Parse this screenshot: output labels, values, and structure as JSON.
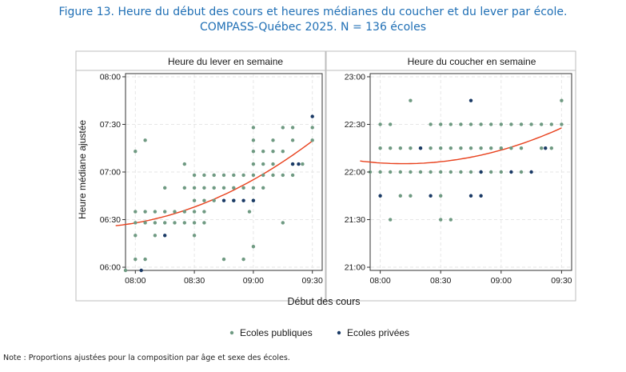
{
  "title_line1": "Figure 13. Heure du début des cours et heures médianes du coucher et du lever par école.",
  "title_line2": "COMPASS-Québec 2025. N = 136 écoles",
  "xlabel": "Début des cours",
  "ylabel": "Heure médiane ajustée",
  "legend": [
    {
      "label": "Ecoles publiques",
      "color": "#6f9a82"
    },
    {
      "label": "Ecoles privées",
      "color": "#1a3a66"
    }
  ],
  "note": "Note : Proportions ajustées pour la composition par âge et sexe des écoles.",
  "colors": {
    "public": "#6f9a82",
    "private": "#1a3a66",
    "fit": "#e8401c",
    "grid": "#e6e6e6"
  },
  "chart_data": [
    {
      "type": "scatter",
      "title": "Heure du lever en semaine",
      "xlim": [
        "07:55",
        "09:35"
      ],
      "ylim": [
        "05:58",
        "08:02"
      ],
      "xticks": [
        "08:00",
        "08:30",
        "09:00",
        "09:30"
      ],
      "yticks": [
        "06:00",
        "06:30",
        "07:00",
        "07:30",
        "08:00"
      ],
      "series": [
        {
          "name": "Ecoles publiques",
          "points": [
            [
              "07:55",
              "05:58"
            ],
            [
              "08:00",
              "06:05"
            ],
            [
              "08:00",
              "06:20"
            ],
            [
              "08:00",
              "06:28"
            ],
            [
              "08:00",
              "06:35"
            ],
            [
              "08:00",
              "07:13"
            ],
            [
              "08:05",
              "06:05"
            ],
            [
              "08:05",
              "06:28"
            ],
            [
              "08:05",
              "06:35"
            ],
            [
              "08:05",
              "07:20"
            ],
            [
              "08:10",
              "06:20"
            ],
            [
              "08:10",
              "06:28"
            ],
            [
              "08:10",
              "06:35"
            ],
            [
              "08:15",
              "06:28"
            ],
            [
              "08:15",
              "06:35"
            ],
            [
              "08:15",
              "06:50"
            ],
            [
              "08:20",
              "06:28"
            ],
            [
              "08:20",
              "06:35"
            ],
            [
              "08:25",
              "06:28"
            ],
            [
              "08:25",
              "06:35"
            ],
            [
              "08:25",
              "06:50"
            ],
            [
              "08:25",
              "07:05"
            ],
            [
              "08:30",
              "06:20"
            ],
            [
              "08:30",
              "06:28"
            ],
            [
              "08:30",
              "06:35"
            ],
            [
              "08:30",
              "06:42"
            ],
            [
              "08:30",
              "06:50"
            ],
            [
              "08:30",
              "06:58"
            ],
            [
              "08:35",
              "06:28"
            ],
            [
              "08:35",
              "06:35"
            ],
            [
              "08:35",
              "06:42"
            ],
            [
              "08:35",
              "06:50"
            ],
            [
              "08:35",
              "06:58"
            ],
            [
              "08:40",
              "06:42"
            ],
            [
              "08:40",
              "06:50"
            ],
            [
              "08:40",
              "06:58"
            ],
            [
              "08:45",
              "06:05"
            ],
            [
              "08:45",
              "06:50"
            ],
            [
              "08:45",
              "06:58"
            ],
            [
              "08:50",
              "06:42"
            ],
            [
              "08:50",
              "06:50"
            ],
            [
              "08:50",
              "06:58"
            ],
            [
              "08:55",
              "06:05"
            ],
            [
              "08:55",
              "06:50"
            ],
            [
              "08:55",
              "06:58"
            ],
            [
              "09:00",
              "06:13"
            ],
            [
              "08:58",
              "06:35"
            ],
            [
              "09:00",
              "06:42"
            ],
            [
              "09:00",
              "06:50"
            ],
            [
              "09:00",
              "06:58"
            ],
            [
              "09:00",
              "07:05"
            ],
            [
              "09:00",
              "07:13"
            ],
            [
              "09:00",
              "07:20"
            ],
            [
              "09:00",
              "07:28"
            ],
            [
              "09:05",
              "06:50"
            ],
            [
              "09:05",
              "06:58"
            ],
            [
              "09:05",
              "07:05"
            ],
            [
              "09:05",
              "07:13"
            ],
            [
              "09:10",
              "06:58"
            ],
            [
              "09:10",
              "07:05"
            ],
            [
              "09:10",
              "07:13"
            ],
            [
              "09:10",
              "07:20"
            ],
            [
              "09:15",
              "06:28"
            ],
            [
              "09:15",
              "06:58"
            ],
            [
              "09:15",
              "07:13"
            ],
            [
              "09:15",
              "07:28"
            ],
            [
              "09:20",
              "06:58"
            ],
            [
              "09:20",
              "07:05"
            ],
            [
              "09:20",
              "07:20"
            ],
            [
              "09:20",
              "07:28"
            ],
            [
              "09:25",
              "07:05"
            ],
            [
              "09:30",
              "07:20"
            ],
            [
              "09:30",
              "07:28"
            ]
          ]
        },
        {
          "name": "Ecoles privées",
          "points": [
            [
              "08:03",
              "05:58"
            ],
            [
              "08:15",
              "06:20"
            ],
            [
              "08:45",
              "06:42"
            ],
            [
              "08:50",
              "06:42"
            ],
            [
              "08:55",
              "06:42"
            ],
            [
              "09:00",
              "06:42"
            ],
            [
              "09:20",
              "07:05"
            ],
            [
              "09:23",
              "07:05"
            ],
            [
              "09:30",
              "07:35"
            ]
          ]
        }
      ],
      "fit": {
        "type": "quadratic",
        "color": "#e8401c"
      }
    },
    {
      "type": "scatter",
      "title": "Heure du coucher en semaine",
      "xlim": [
        "07:55",
        "09:35"
      ],
      "ylim": [
        "20:58",
        "23:02"
      ],
      "xticks": [
        "08:00",
        "08:30",
        "09:00",
        "09:30"
      ],
      "yticks": [
        "21:00",
        "21:30",
        "22:00",
        "22:30",
        "23:00"
      ],
      "series": [
        {
          "name": "Ecoles publiques",
          "points": [
            [
              "07:55",
              "22:00"
            ],
            [
              "08:00",
              "22:00"
            ],
            [
              "08:00",
              "22:15"
            ],
            [
              "08:00",
              "22:30"
            ],
            [
              "08:05",
              "21:30"
            ],
            [
              "08:05",
              "22:00"
            ],
            [
              "08:05",
              "22:15"
            ],
            [
              "08:05",
              "22:30"
            ],
            [
              "08:10",
              "21:45"
            ],
            [
              "08:10",
              "22:00"
            ],
            [
              "08:10",
              "22:15"
            ],
            [
              "08:15",
              "21:45"
            ],
            [
              "08:15",
              "22:00"
            ],
            [
              "08:15",
              "22:15"
            ],
            [
              "08:15",
              "22:45"
            ],
            [
              "08:20",
              "22:00"
            ],
            [
              "08:20",
              "22:15"
            ],
            [
              "08:25",
              "22:00"
            ],
            [
              "08:25",
              "22:15"
            ],
            [
              "08:25",
              "22:30"
            ],
            [
              "08:30",
              "21:30"
            ],
            [
              "08:30",
              "21:45"
            ],
            [
              "08:30",
              "22:00"
            ],
            [
              "08:30",
              "22:15"
            ],
            [
              "08:30",
              "22:30"
            ],
            [
              "08:35",
              "21:30"
            ],
            [
              "08:35",
              "22:00"
            ],
            [
              "08:35",
              "22:15"
            ],
            [
              "08:35",
              "22:30"
            ],
            [
              "08:40",
              "22:00"
            ],
            [
              "08:40",
              "22:15"
            ],
            [
              "08:40",
              "22:30"
            ],
            [
              "08:45",
              "22:00"
            ],
            [
              "08:45",
              "22:15"
            ],
            [
              "08:45",
              "22:30"
            ],
            [
              "08:50",
              "22:00"
            ],
            [
              "08:50",
              "22:15"
            ],
            [
              "08:50",
              "22:30"
            ],
            [
              "08:55",
              "22:00"
            ],
            [
              "08:55",
              "22:15"
            ],
            [
              "08:55",
              "22:30"
            ],
            [
              "09:00",
              "22:00"
            ],
            [
              "09:00",
              "22:15"
            ],
            [
              "09:00",
              "22:30"
            ],
            [
              "09:05",
              "22:15"
            ],
            [
              "09:05",
              "22:30"
            ],
            [
              "09:10",
              "22:00"
            ],
            [
              "09:10",
              "22:15"
            ],
            [
              "09:10",
              "22:30"
            ],
            [
              "09:15",
              "22:30"
            ],
            [
              "09:20",
              "22:15"
            ],
            [
              "09:20",
              "22:30"
            ],
            [
              "09:25",
              "22:15"
            ],
            [
              "09:25",
              "22:30"
            ],
            [
              "09:30",
              "22:30"
            ],
            [
              "09:30",
              "22:45"
            ]
          ]
        },
        {
          "name": "Ecoles privées",
          "points": [
            [
              "08:00",
              "21:45"
            ],
            [
              "08:20",
              "22:15"
            ],
            [
              "08:25",
              "21:45"
            ],
            [
              "08:45",
              "22:45"
            ],
            [
              "08:45",
              "21:45"
            ],
            [
              "08:50",
              "21:45"
            ],
            [
              "08:50",
              "22:00"
            ],
            [
              "09:05",
              "22:00"
            ],
            [
              "09:15",
              "22:00"
            ],
            [
              "09:22",
              "22:15"
            ]
          ]
        }
      ],
      "fit": {
        "type": "quadratic",
        "color": "#e8401c"
      }
    }
  ]
}
